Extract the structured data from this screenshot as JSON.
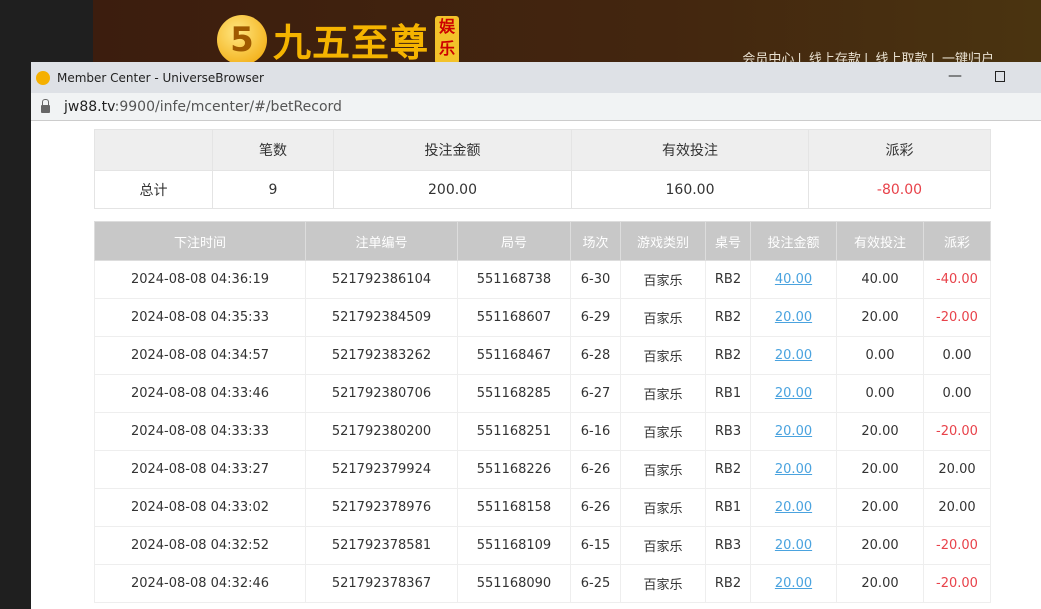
{
  "site": {
    "logo_text": "九五至尊",
    "logo_badge": "娱乐",
    "nav": [
      "会员中心",
      "线上存款",
      "线上取款",
      "一键归户"
    ]
  },
  "window": {
    "title": "Member Center - UniverseBrowser",
    "url_host": "jw88.tv",
    "url_rest": ":9900/infe/mcenter/#/betRecord"
  },
  "summary": {
    "headers": [
      "",
      "笔数",
      "投注金额",
      "有效投注",
      "派彩"
    ],
    "row": [
      "总计",
      "9",
      "200.00",
      "160.00",
      "-80.00"
    ]
  },
  "bets": {
    "headers": [
      "下注时间",
      "注单编号",
      "局号",
      "场次",
      "游戏类别",
      "桌号",
      "投注金额",
      "有效投注",
      "派彩"
    ],
    "rows": [
      [
        "2024-08-08 04:36:19",
        "521792386104",
        "551168738",
        "6-30",
        "百家乐",
        "RB2",
        "40.00",
        "40.00",
        "-40.00"
      ],
      [
        "2024-08-08 04:35:33",
        "521792384509",
        "551168607",
        "6-29",
        "百家乐",
        "RB2",
        "20.00",
        "20.00",
        "-20.00"
      ],
      [
        "2024-08-08 04:34:57",
        "521792383262",
        "551168467",
        "6-28",
        "百家乐",
        "RB2",
        "20.00",
        "0.00",
        "0.00"
      ],
      [
        "2024-08-08 04:33:46",
        "521792380706",
        "551168285",
        "6-27",
        "百家乐",
        "RB1",
        "20.00",
        "0.00",
        "0.00"
      ],
      [
        "2024-08-08 04:33:33",
        "521792380200",
        "551168251",
        "6-16",
        "百家乐",
        "RB3",
        "20.00",
        "20.00",
        "-20.00"
      ],
      [
        "2024-08-08 04:33:27",
        "521792379924",
        "551168226",
        "6-26",
        "百家乐",
        "RB2",
        "20.00",
        "20.00",
        "20.00"
      ],
      [
        "2024-08-08 04:33:02",
        "521792378976",
        "551168158",
        "6-26",
        "百家乐",
        "RB1",
        "20.00",
        "20.00",
        "20.00"
      ],
      [
        "2024-08-08 04:32:52",
        "521792378581",
        "551168109",
        "6-15",
        "百家乐",
        "RB3",
        "20.00",
        "20.00",
        "-20.00"
      ],
      [
        "2024-08-08 04:32:46",
        "521792378367",
        "551168090",
        "6-25",
        "百家乐",
        "RB2",
        "20.00",
        "20.00",
        "-20.00"
      ]
    ]
  },
  "colors": {
    "negative": "#e8424a",
    "link": "#4aa3df",
    "header_bg": "#c8c8c8"
  }
}
